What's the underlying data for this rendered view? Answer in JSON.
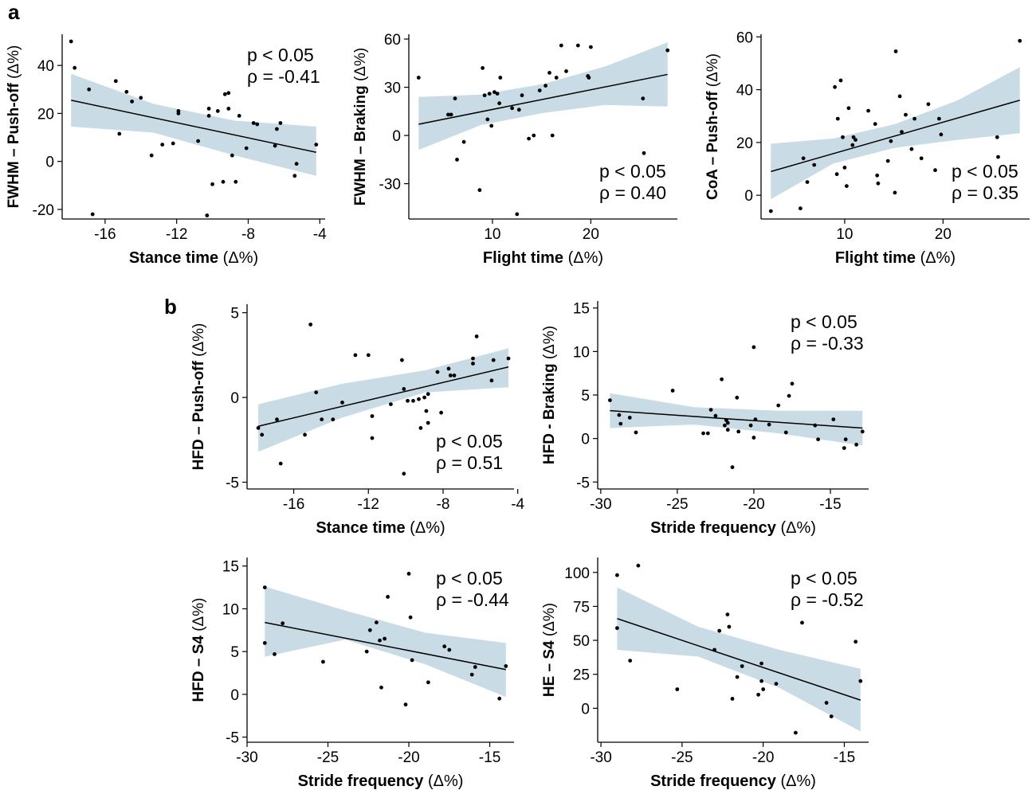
{
  "panels": {
    "a": "a",
    "b": "b"
  },
  "style": {
    "band_color": "#c9dce6",
    "point_color": "#000000",
    "line_color": "#000000"
  },
  "chart_data": [
    {
      "type": "scatter",
      "panel": "a",
      "xlabel": "Stance time",
      "xunit": "(Δ%)",
      "ylabel": "FWHM – Push-off",
      "yunit": "(Δ%)",
      "p_label": "p < 0.05",
      "rho_label": "ρ = -0.41",
      "xlim": [
        -18.4,
        -3.7
      ],
      "ylim": [
        -24,
        53
      ],
      "xticks": [
        -16,
        -12,
        -8,
        -4
      ],
      "yticks": [
        -20,
        0,
        20,
        40
      ],
      "points": [
        [
          -17.9,
          50
        ],
        [
          -17.7,
          39
        ],
        [
          -16.9,
          30
        ],
        [
          -16.7,
          -22
        ],
        [
          -15.4,
          33.5
        ],
        [
          -15.2,
          11.5
        ],
        [
          -14.8,
          29
        ],
        [
          -14.5,
          25
        ],
        [
          -14,
          26.5
        ],
        [
          -13.4,
          2.5
        ],
        [
          -12.8,
          7
        ],
        [
          -12.2,
          7.5
        ],
        [
          -11.9,
          21
        ],
        [
          -11.9,
          20
        ],
        [
          -10.8,
          8.5
        ],
        [
          -10.3,
          -22.5
        ],
        [
          -10.2,
          22
        ],
        [
          -10.2,
          19
        ],
        [
          -10,
          -9.5
        ],
        [
          -9.7,
          21
        ],
        [
          -9.4,
          -8.5
        ],
        [
          -9.3,
          28
        ],
        [
          -9.1,
          22
        ],
        [
          -9.1,
          28.5
        ],
        [
          -8.9,
          2.5
        ],
        [
          -8.7,
          -8.5
        ],
        [
          -8.5,
          19
        ],
        [
          -8.1,
          5.5
        ],
        [
          -7.7,
          16
        ],
        [
          -7.5,
          15.5
        ],
        [
          -6.5,
          6.5
        ],
        [
          -6.4,
          13.5
        ],
        [
          -6.2,
          16
        ],
        [
          -5.4,
          -6
        ],
        [
          -5.3,
          -1
        ],
        [
          -4.2,
          7
        ]
      ],
      "fit": {
        "x": [
          -17.9,
          -4.2
        ],
        "y": [
          25.5,
          3.8
        ]
      },
      "ci": {
        "x": [
          -17.9,
          -13.3,
          -8.75,
          -4.2
        ],
        "upper": [
          36.5,
          24,
          17,
          14.5
        ],
        "lower": [
          14.5,
          12,
          2.5,
          -6
        ]
      },
      "stats_pos": "top-right"
    },
    {
      "type": "scatter",
      "panel": "a",
      "xlabel": "Flight time",
      "xunit": "(Δ%)",
      "ylabel": "FWHM –  Braking",
      "yunit": "(Δ%)",
      "p_label": "p < 0.05",
      "rho_label": "ρ = 0.40",
      "xlim": [
        1.5,
        28.8
      ],
      "ylim": [
        -52,
        63
      ],
      "xticks": [
        10,
        20
      ],
      "yticks": [
        -30,
        0,
        30,
        60
      ],
      "points": [
        [
          2.5,
          36
        ],
        [
          5.5,
          13
        ],
        [
          5.8,
          13
        ],
        [
          6.2,
          23
        ],
        [
          6.4,
          -15
        ],
        [
          7.1,
          -4
        ],
        [
          8.7,
          -34
        ],
        [
          9,
          42
        ],
        [
          9.2,
          25
        ],
        [
          9.5,
          10
        ],
        [
          9.7,
          26
        ],
        [
          9.9,
          6
        ],
        [
          10.2,
          27
        ],
        [
          10.5,
          26
        ],
        [
          10.7,
          20
        ],
        [
          10.8,
          36
        ],
        [
          12,
          17
        ],
        [
          12.5,
          -49
        ],
        [
          12.7,
          16
        ],
        [
          13,
          25
        ],
        [
          13.7,
          -2
        ],
        [
          14.2,
          0
        ],
        [
          14.8,
          28
        ],
        [
          15.4,
          31
        ],
        [
          15.8,
          39
        ],
        [
          16.1,
          0
        ],
        [
          16.5,
          36
        ],
        [
          17,
          56
        ],
        [
          17.5,
          40
        ],
        [
          18.7,
          56
        ],
        [
          19.7,
          37
        ],
        [
          19.8,
          36
        ],
        [
          20,
          55
        ],
        [
          25.3,
          23
        ],
        [
          25.4,
          -11
        ],
        [
          27.8,
          53
        ]
      ],
      "fit": {
        "x": [
          2.5,
          27.8
        ],
        "y": [
          7,
          38
        ]
      },
      "ci": {
        "x": [
          2.5,
          8.83,
          15.15,
          21.5,
          27.8
        ],
        "upper": [
          24,
          25.5,
          32,
          43,
          58
        ],
        "lower": [
          -9,
          6.5,
          14,
          19,
          18
        ]
      },
      "stats_pos": "bottom-right"
    },
    {
      "type": "scatter",
      "panel": "a",
      "xlabel": "Flight time",
      "xunit": "(Δ%)",
      "ylabel": "CoA – Push-off",
      "yunit": "(Δ%)",
      "p_label": "p < 0.05",
      "rho_label": "ρ = 0.35",
      "xlim": [
        1.5,
        28.8
      ],
      "ylim": [
        -9,
        61
      ],
      "xticks": [
        10,
        20
      ],
      "yticks": [
        0,
        20,
        40,
        60
      ],
      "points": [
        [
          2.5,
          -6
        ],
        [
          5.5,
          -5
        ],
        [
          5.8,
          14
        ],
        [
          6.2,
          5
        ],
        [
          6.9,
          11.5
        ],
        [
          9,
          41
        ],
        [
          9.2,
          8
        ],
        [
          9.3,
          29
        ],
        [
          9.6,
          43.5
        ],
        [
          9.8,
          22
        ],
        [
          10,
          10.5
        ],
        [
          10.2,
          3.5
        ],
        [
          10.4,
          33
        ],
        [
          10.8,
          19
        ],
        [
          10.9,
          22
        ],
        [
          11.1,
          21
        ],
        [
          12.4,
          32
        ],
        [
          13.1,
          27
        ],
        [
          13.3,
          7.5
        ],
        [
          13.4,
          4.5
        ],
        [
          14.4,
          13
        ],
        [
          14.7,
          20.5
        ],
        [
          15.1,
          1
        ],
        [
          15.2,
          54.5
        ],
        [
          15.6,
          37.5
        ],
        [
          15.8,
          24
        ],
        [
          16.2,
          30.5
        ],
        [
          16.8,
          17.5
        ],
        [
          17.1,
          29
        ],
        [
          17.8,
          14
        ],
        [
          18.5,
          34.5
        ],
        [
          19.2,
          9.5
        ],
        [
          19.6,
          29
        ],
        [
          19.8,
          23
        ],
        [
          25.5,
          22
        ],
        [
          25.6,
          14.5
        ],
        [
          27.8,
          58.5
        ]
      ],
      "fit": {
        "x": [
          2.5,
          27.8
        ],
        "y": [
          9,
          36
        ]
      },
      "ci": {
        "x": [
          2.5,
          8.83,
          15.15,
          21.5,
          27.8
        ],
        "upper": [
          19.5,
          21.5,
          27,
          36,
          48.5
        ],
        "lower": [
          -1.5,
          12,
          18,
          21,
          23.5
        ]
      },
      "stats_pos": "bottom-right"
    },
    {
      "type": "scatter",
      "panel": "b",
      "xlabel": "Stance time",
      "xunit": "(Δ%)",
      "ylabel": "HFD – Push-off",
      "yunit": "(Δ%)",
      "p_label": "p < 0.05",
      "rho_label": "ρ = 0.51",
      "xlim": [
        -18.5,
        -4.2
      ],
      "ylim": [
        -5.4,
        5.5
      ],
      "xticks": [
        -16,
        -12,
        -8,
        -4
      ],
      "yticks": [
        -5,
        0,
        5
      ],
      "points": [
        [
          -17.9,
          -1.8
        ],
        [
          -17.7,
          -2.2
        ],
        [
          -16.9,
          -1.3
        ],
        [
          -16.7,
          -3.9
        ],
        [
          -15.4,
          -2.2
        ],
        [
          -15.1,
          4.3
        ],
        [
          -14.8,
          0.3
        ],
        [
          -14.5,
          -1.3
        ],
        [
          -13.9,
          -1.3
        ],
        [
          -13.4,
          -0.3
        ],
        [
          -12.7,
          2.5
        ],
        [
          -12,
          2.5
        ],
        [
          -11.8,
          -1.1
        ],
        [
          -11.8,
          -2.4
        ],
        [
          -10.8,
          -0.4
        ],
        [
          -10.2,
          2.2
        ],
        [
          -10.1,
          0.5
        ],
        [
          -10.1,
          -4.5
        ],
        [
          -9.9,
          -0.2
        ],
        [
          -9.6,
          -0.2
        ],
        [
          -9.3,
          -0.1
        ],
        [
          -9.2,
          -1.8
        ],
        [
          -9,
          0
        ],
        [
          -8.9,
          -0.8
        ],
        [
          -8.8,
          -1.5
        ],
        [
          -8.8,
          0.2
        ],
        [
          -8.3,
          1.5
        ],
        [
          -8.1,
          -0.9
        ],
        [
          -7.7,
          1.7
        ],
        [
          -7.6,
          1.3
        ],
        [
          -7.4,
          1.3
        ],
        [
          -6.4,
          2
        ],
        [
          -6.4,
          2.3
        ],
        [
          -6.2,
          3.6
        ],
        [
          -5.4,
          1
        ],
        [
          -5.3,
          2.2
        ],
        [
          -4.5,
          2.3
        ]
      ],
      "fit": {
        "x": [
          -17.9,
          -4.5
        ],
        "y": [
          -1.7,
          1.8
        ]
      },
      "ci": {
        "x": [
          -17.9,
          -13.43,
          -8.97,
          -4.5
        ],
        "upper": [
          -0.4,
          0.8,
          1.6,
          2.9
        ],
        "lower": [
          -3.2,
          -1.2,
          0.3,
          0.6
        ]
      },
      "stats_pos": "bottom-right"
    },
    {
      "type": "scatter",
      "panel": "b",
      "xlabel": "Stride frequency",
      "xunit": "(Δ%)",
      "ylabel": "HFD - Braking",
      "yunit": "(Δ%)",
      "p_label": "p < 0.05",
      "rho_label": "ρ = -0.33",
      "xlim": [
        -30.2,
        -12.5
      ],
      "ylim": [
        -5.8,
        15.8
      ],
      "xticks": [
        -30,
        -25,
        -20,
        -15
      ],
      "yticks": [
        -5,
        0,
        5,
        10,
        15
      ],
      "points": [
        [
          -29.4,
          4.4
        ],
        [
          -28.8,
          2.7
        ],
        [
          -28.7,
          1.7
        ],
        [
          -28.1,
          2.4
        ],
        [
          -27.7,
          0.7
        ],
        [
          -25.3,
          5.5
        ],
        [
          -23.3,
          0.6
        ],
        [
          -23,
          0.6
        ],
        [
          -22.8,
          3.3
        ],
        [
          -22.5,
          2.6
        ],
        [
          -22.1,
          6.8
        ],
        [
          -21.9,
          1.5
        ],
        [
          -21.8,
          2.1
        ],
        [
          -21.7,
          1.8
        ],
        [
          -21.7,
          1
        ],
        [
          -21.4,
          -3.3
        ],
        [
          -21.1,
          4.7
        ],
        [
          -21,
          0.8
        ],
        [
          -20.2,
          1.5
        ],
        [
          -20,
          10.5
        ],
        [
          -20,
          0.1
        ],
        [
          -19.9,
          2.2
        ],
        [
          -19,
          1.6
        ],
        [
          -18.4,
          3.8
        ],
        [
          -17.9,
          0.7
        ],
        [
          -17.7,
          4.9
        ],
        [
          -17.5,
          6.3
        ],
        [
          -16,
          1.5
        ],
        [
          -15.8,
          -0.1
        ],
        [
          -14.8,
          2.2
        ],
        [
          -14.1,
          -1.1
        ],
        [
          -14,
          -0.1
        ],
        [
          -13.3,
          -0.7
        ],
        [
          -12.9,
          0.8
        ]
      ],
      "fit": {
        "x": [
          -29.4,
          -12.9
        ],
        "y": [
          3.2,
          1.2
        ]
      },
      "ci": {
        "x": [
          -29.4,
          -23.9,
          -18.4,
          -12.9
        ],
        "upper": [
          5.2,
          3.6,
          3.2,
          3.2
        ],
        "lower": [
          1.2,
          1.6,
          0.6,
          -0.8
        ]
      },
      "stats_pos": "top-right"
    },
    {
      "type": "scatter",
      "panel": "b",
      "xlabel": "Stride frequency",
      "xunit": "(Δ%)",
      "ylabel": "HFD – S4",
      "yunit": "(Δ%)",
      "p_label": "p < 0.05",
      "rho_label": "ρ = -0.44",
      "xlim": [
        -30,
        -13.5
      ],
      "ylim": [
        -5.6,
        16
      ],
      "xticks": [
        -30,
        -25,
        -20,
        -15
      ],
      "yticks": [
        -5,
        0,
        5,
        10,
        15
      ],
      "points": [
        [
          -28.9,
          12.5
        ],
        [
          -28.9,
          6
        ],
        [
          -28.3,
          4.7
        ],
        [
          -27.8,
          8.3
        ],
        [
          -25.3,
          3.8
        ],
        [
          -22.6,
          5
        ],
        [
          -22.4,
          7.5
        ],
        [
          -22,
          8.4
        ],
        [
          -21.8,
          6.3
        ],
        [
          -21.7,
          0.8
        ],
        [
          -21.5,
          6.5
        ],
        [
          -21.3,
          11.4
        ],
        [
          -20.2,
          -1.2
        ],
        [
          -20,
          14.1
        ],
        [
          -19.9,
          9
        ],
        [
          -19.8,
          4
        ],
        [
          -18.8,
          1.4
        ],
        [
          -17.8,
          5.6
        ],
        [
          -17.5,
          5.2
        ],
        [
          -16.1,
          2.3
        ],
        [
          -15.9,
          3.2
        ],
        [
          -14.4,
          -0.5
        ],
        [
          -14,
          3.3
        ]
      ],
      "fit": {
        "x": [
          -28.9,
          -14
        ],
        "y": [
          8.4,
          2.9
        ]
      },
      "ci": {
        "x": [
          -28.9,
          -23.93,
          -18.97,
          -14
        ],
        "upper": [
          12.6,
          9.8,
          7.2,
          6.0
        ],
        "lower": [
          4.4,
          6.4,
          3.5,
          -0.3
        ]
      },
      "stats_pos": "top-right"
    },
    {
      "type": "scatter",
      "panel": "b",
      "xlabel": "Stride frequency",
      "xunit": "(Δ%)",
      "ylabel": "HE – S4",
      "yunit": "(Δ%)",
      "p_label": "p < 0.05",
      "rho_label": "ρ = -0.52",
      "xlim": [
        -30.2,
        -13.5
      ],
      "ylim": [
        -25,
        111
      ],
      "xticks": [
        -30,
        -25,
        -20,
        -15
      ],
      "yticks": [
        0,
        25,
        50,
        75,
        100
      ],
      "points": [
        [
          -29,
          98
        ],
        [
          -29,
          59
        ],
        [
          -28.2,
          35
        ],
        [
          -27.7,
          105
        ],
        [
          -25.3,
          14
        ],
        [
          -23,
          43
        ],
        [
          -22.7,
          57
        ],
        [
          -22.2,
          69
        ],
        [
          -22.1,
          60
        ],
        [
          -21.9,
          7
        ],
        [
          -21.6,
          23
        ],
        [
          -21.3,
          31
        ],
        [
          -20.3,
          10
        ],
        [
          -20.1,
          33
        ],
        [
          -20.1,
          20
        ],
        [
          -20,
          14
        ],
        [
          -19.2,
          18
        ],
        [
          -18,
          -18
        ],
        [
          -17.6,
          63
        ],
        [
          -16.1,
          4
        ],
        [
          -15.8,
          -6
        ],
        [
          -14.3,
          49
        ],
        [
          -14,
          20
        ]
      ],
      "fit": {
        "x": [
          -29,
          -14
        ],
        "y": [
          66,
          6
        ]
      },
      "ci": {
        "x": [
          -29,
          -24,
          -19,
          -14
        ],
        "upper": [
          89,
          60,
          43,
          29
        ],
        "lower": [
          43,
          38,
          15,
          -17
        ]
      },
      "stats_pos": "top-right"
    }
  ]
}
